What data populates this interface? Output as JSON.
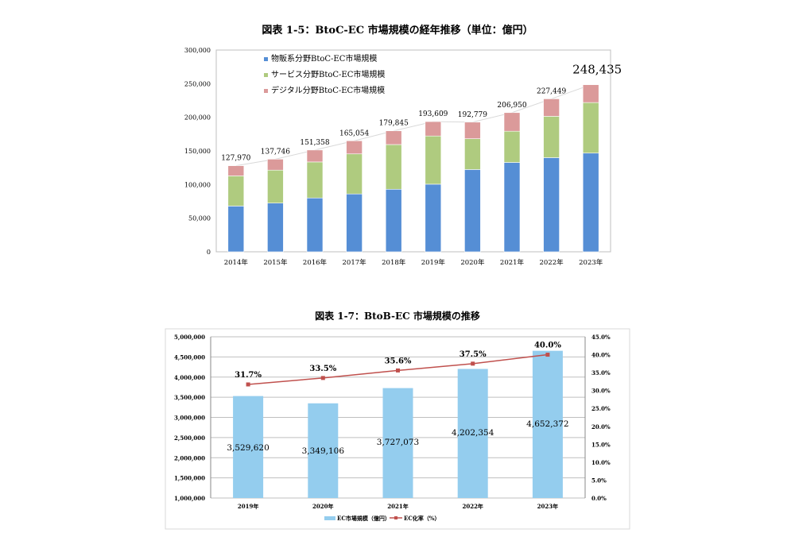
{
  "chart_data": [
    {
      "type": "bar",
      "stacked": true,
      "title": "図表 1-5：BtoC-EC 市場規模の経年推移（単位：億円）",
      "categories": [
        "2014年",
        "2015年",
        "2016年",
        "2017年",
        "2018年",
        "2019年",
        "2020年",
        "2021年",
        "2022年",
        "2023年"
      ],
      "series": [
        {
          "name": "物販系分野BtoC-EC市場規模",
          "color": "#558ed5",
          "values": [
            68042,
            72398,
            80043,
            86008,
            92992,
            100515,
            122333,
            132865,
            139997,
            146760
          ]
        },
        {
          "name": "サービス分野BtoC-EC市場規模",
          "color": "#afcb7f",
          "values": [
            44816,
            49014,
            53532,
            59568,
            66471,
            71672,
            45832,
            46424,
            61477,
            75169
          ]
        },
        {
          "name": "デジタル分野BtoC-EC市場規模",
          "color": "#db9a9a",
          "values": [
            15111,
            16334,
            17782,
            19478,
            20382,
            21422,
            24614,
            27661,
            25974,
            26506
          ]
        }
      ],
      "totals": [
        127970,
        137746,
        151358,
        165054,
        179845,
        193609,
        192779,
        206950,
        227449,
        248435
      ],
      "total_labels": [
        "127,970",
        "137,746",
        "151,358",
        "165,054",
        "179,845",
        "193,609",
        "192,779",
        "206,950",
        "227,449",
        "248,435"
      ],
      "ylim": [
        0,
        300000
      ],
      "yticks": [
        "0",
        "50,000",
        "100,000",
        "150,000",
        "200,000",
        "250,000",
        "300,000"
      ],
      "legend": "top-left",
      "grid": false
    },
    {
      "type": "bar",
      "title": "図表 1-7：BtoB-EC 市場規模の推移",
      "categories": [
        "2019年",
        "2020年",
        "2021年",
        "2022年",
        "2023年"
      ],
      "series": [
        {
          "name": "EC市場規模（億円）",
          "color": "#94cdee",
          "axis": "left",
          "values": [
            3529620,
            3349106,
            3727073,
            4202354,
            4652372
          ],
          "labels": [
            "3,529,620",
            "3,349,106",
            "3,727,073",
            "4,202,354",
            "4,652,372"
          ]
        },
        {
          "name": "EC化率（%）",
          "type": "line",
          "color": "#c0504d",
          "axis": "right",
          "values": [
            31.7,
            33.5,
            35.6,
            37.5,
            40.0
          ],
          "labels": [
            "31.7%",
            "33.5%",
            "35.6%",
            "37.5%",
            "40.0%"
          ]
        }
      ],
      "ylim": [
        1000000,
        5000000
      ],
      "yticks": [
        "1,000,000",
        "1,500,000",
        "2,000,000",
        "2,500,000",
        "3,000,000",
        "3,500,000",
        "4,000,000",
        "4,500,000",
        "5,000,000"
      ],
      "y2lim": [
        0,
        45
      ],
      "y2ticks": [
        "0.0%",
        "5.0%",
        "10.0%",
        "15.0%",
        "20.0%",
        "25.0%",
        "30.0%",
        "35.0%",
        "40.0%",
        "45.0%"
      ],
      "legend": "bottom",
      "grid": true
    }
  ]
}
